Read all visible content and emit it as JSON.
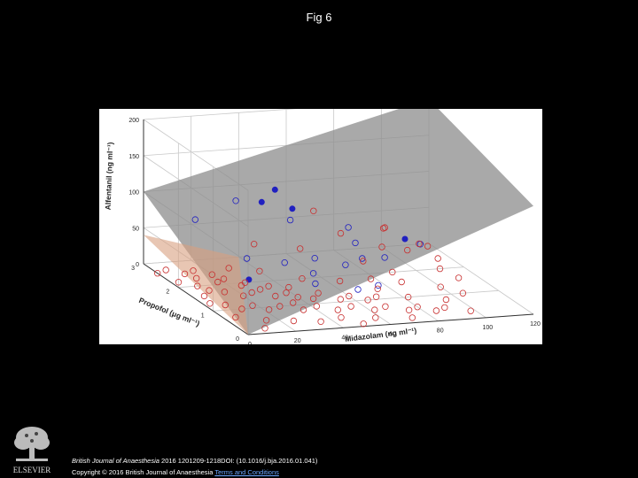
{
  "page": {
    "title": "Fig 6"
  },
  "footer": {
    "journal": "British Journal of Anaesthesia",
    "citation": " 2016 1201209-1218DOI: (10.1016/j.bja.2016.01.041)",
    "copyright_prefix": "Copyright © 2016 British Journal of Anaesthesia ",
    "link": "Terms and Conditions",
    "publisher": "ELSEVIER"
  },
  "chart_data": {
    "type": "scatter",
    "projection": "3d",
    "xlabel": "Midazolam (ng ml⁻¹)",
    "ylabel": "Propofol (μg ml⁻¹)",
    "zlabel": "Alfentanil (ng ml⁻¹)",
    "xlim": [
      0,
      120
    ],
    "ylim": [
      0,
      3
    ],
    "zlim": [
      0,
      200
    ],
    "xticks": [
      "0",
      "20",
      "40",
      "60",
      "80",
      "100",
      "120"
    ],
    "yticks": [
      "0",
      "1",
      "2",
      "3"
    ],
    "zticks": [
      "0",
      "50",
      "100",
      "150",
      "200"
    ],
    "grid": true,
    "colors": {
      "red": "#c83030",
      "blue": "#2020c0",
      "plane_gray": "#8c8c8c",
      "plane_tan": "#d8a080"
    },
    "surfaces": [
      {
        "corners": [
          [
            0,
            0,
            0
          ],
          [
            120,
            0,
            150
          ],
          [
            120,
            3,
            200
          ],
          [
            0,
            3,
            100
          ]
        ]
      },
      {
        "corners": [
          [
            0,
            0,
            0
          ],
          [
            0,
            3,
            40
          ],
          [
            40,
            3,
            0
          ]
        ]
      }
    ],
    "series": [
      {
        "marker": "open-circle",
        "color": "#2020c0",
        "points": [
          [
            10,
            2.2,
            85
          ],
          [
            30,
            2.4,
            100
          ],
          [
            50,
            2.2,
            75
          ],
          [
            70,
            1.9,
            70
          ],
          [
            20,
            1.4,
            55
          ],
          [
            30,
            1.0,
            60
          ],
          [
            50,
            1.5,
            45
          ],
          [
            60,
            1.3,
            40
          ],
          [
            70,
            1.5,
            40
          ],
          [
            75,
            1.2,
            50
          ],
          [
            90,
            1.2,
            65
          ],
          [
            40,
            0.8,
            35
          ],
          [
            45,
            1.2,
            35
          ],
          [
            55,
            0.6,
            30
          ],
          [
            65,
            0.7,
            30
          ],
          [
            70,
            1.7,
            55
          ]
        ]
      },
      {
        "marker": "filled-circle",
        "color": "#2020c0",
        "points": [
          [
            45,
            2.3,
            115
          ],
          [
            35,
            2.0,
            110
          ],
          [
            45,
            1.8,
            105
          ],
          [
            15,
            1.0,
            40
          ],
          [
            85,
            1.3,
            70
          ]
        ]
      },
      {
        "marker": "open-circle",
        "color": "#c83030",
        "points": [
          [
            0,
            2.6,
            0
          ],
          [
            5,
            2.7,
            0
          ],
          [
            10,
            2.5,
            0
          ],
          [
            15,
            2.6,
            0
          ],
          [
            20,
            2.4,
            0
          ],
          [
            3,
            2.2,
            0
          ],
          [
            8,
            2.0,
            0
          ],
          [
            12,
            2.3,
            0
          ],
          [
            18,
            2.1,
            0
          ],
          [
            22,
            2.2,
            0
          ],
          [
            25,
            1.9,
            0
          ],
          [
            28,
            2.0,
            0
          ],
          [
            30,
            1.7,
            0
          ],
          [
            35,
            1.8,
            0
          ],
          [
            5,
            1.6,
            0
          ],
          [
            10,
            1.8,
            0
          ],
          [
            15,
            1.7,
            0
          ],
          [
            20,
            1.5,
            0
          ],
          [
            25,
            1.6,
            0
          ],
          [
            32,
            1.4,
            0
          ],
          [
            38,
            1.5,
            0
          ],
          [
            40,
            1.3,
            0
          ],
          [
            45,
            1.2,
            0
          ],
          [
            50,
            1.4,
            0
          ],
          [
            55,
            1.1,
            0
          ],
          [
            60,
            1.2,
            0
          ],
          [
            65,
            1.0,
            0
          ],
          [
            70,
            1.1,
            0
          ],
          [
            8,
            1.2,
            0
          ],
          [
            12,
            1.0,
            0
          ],
          [
            18,
            1.1,
            0
          ],
          [
            22,
            0.9,
            0
          ],
          [
            28,
            1.0,
            0
          ],
          [
            35,
            0.8,
            0
          ],
          [
            42,
            0.9,
            0
          ],
          [
            48,
            0.7,
            0
          ],
          [
            55,
            0.8,
            0
          ],
          [
            62,
            0.6,
            0
          ],
          [
            68,
            0.7,
            0
          ],
          [
            75,
            0.5,
            0
          ],
          [
            80,
            0.6,
            0
          ],
          [
            85,
            0.4,
            0
          ],
          [
            90,
            0.5,
            0
          ],
          [
            5,
            0.7,
            0
          ],
          [
            15,
            0.5,
            0
          ],
          [
            25,
            0.4,
            0
          ],
          [
            35,
            0.3,
            0
          ],
          [
            45,
            0.4,
            0
          ],
          [
            58,
            0.3,
            0
          ],
          [
            72,
            0.2,
            0
          ],
          [
            95,
            0.8,
            0
          ],
          [
            100,
            1.3,
            0
          ],
          [
            105,
            1.0,
            0
          ],
          [
            110,
            2.0,
            0
          ],
          [
            112,
            1.6,
            0
          ],
          [
            115,
            2.4,
            0
          ],
          [
            90,
            2.0,
            0
          ],
          [
            85,
            2.5,
            0
          ],
          [
            78,
            1.8,
            0
          ],
          [
            108,
            2.8,
            0
          ],
          [
            118,
            2.9,
            0
          ],
          [
            100,
            2.9,
            30
          ],
          [
            95,
            2.6,
            40
          ],
          [
            80,
            2.8,
            30
          ],
          [
            60,
            2.6,
            20
          ],
          [
            45,
            2.9,
            20
          ],
          [
            70,
            2.9,
            60
          ],
          [
            90,
            2.3,
            25
          ],
          [
            110,
            2.6,
            15
          ],
          [
            3,
            1.3,
            0
          ],
          [
            10,
            0.2,
            0
          ],
          [
            30,
            2.6,
            0
          ],
          [
            40,
            2.4,
            0
          ],
          [
            52,
            2.0,
            0
          ],
          [
            65,
            1.8,
            0
          ],
          [
            75,
            1.4,
            0
          ],
          [
            82,
            1.0,
            0
          ],
          [
            88,
            1.6,
            0
          ],
          [
            98,
            0.3,
            0
          ],
          [
            50,
            0.1,
            0
          ],
          [
            35,
            1.1,
            0
          ],
          [
            42,
            1.7,
            0
          ]
        ]
      }
    ]
  }
}
